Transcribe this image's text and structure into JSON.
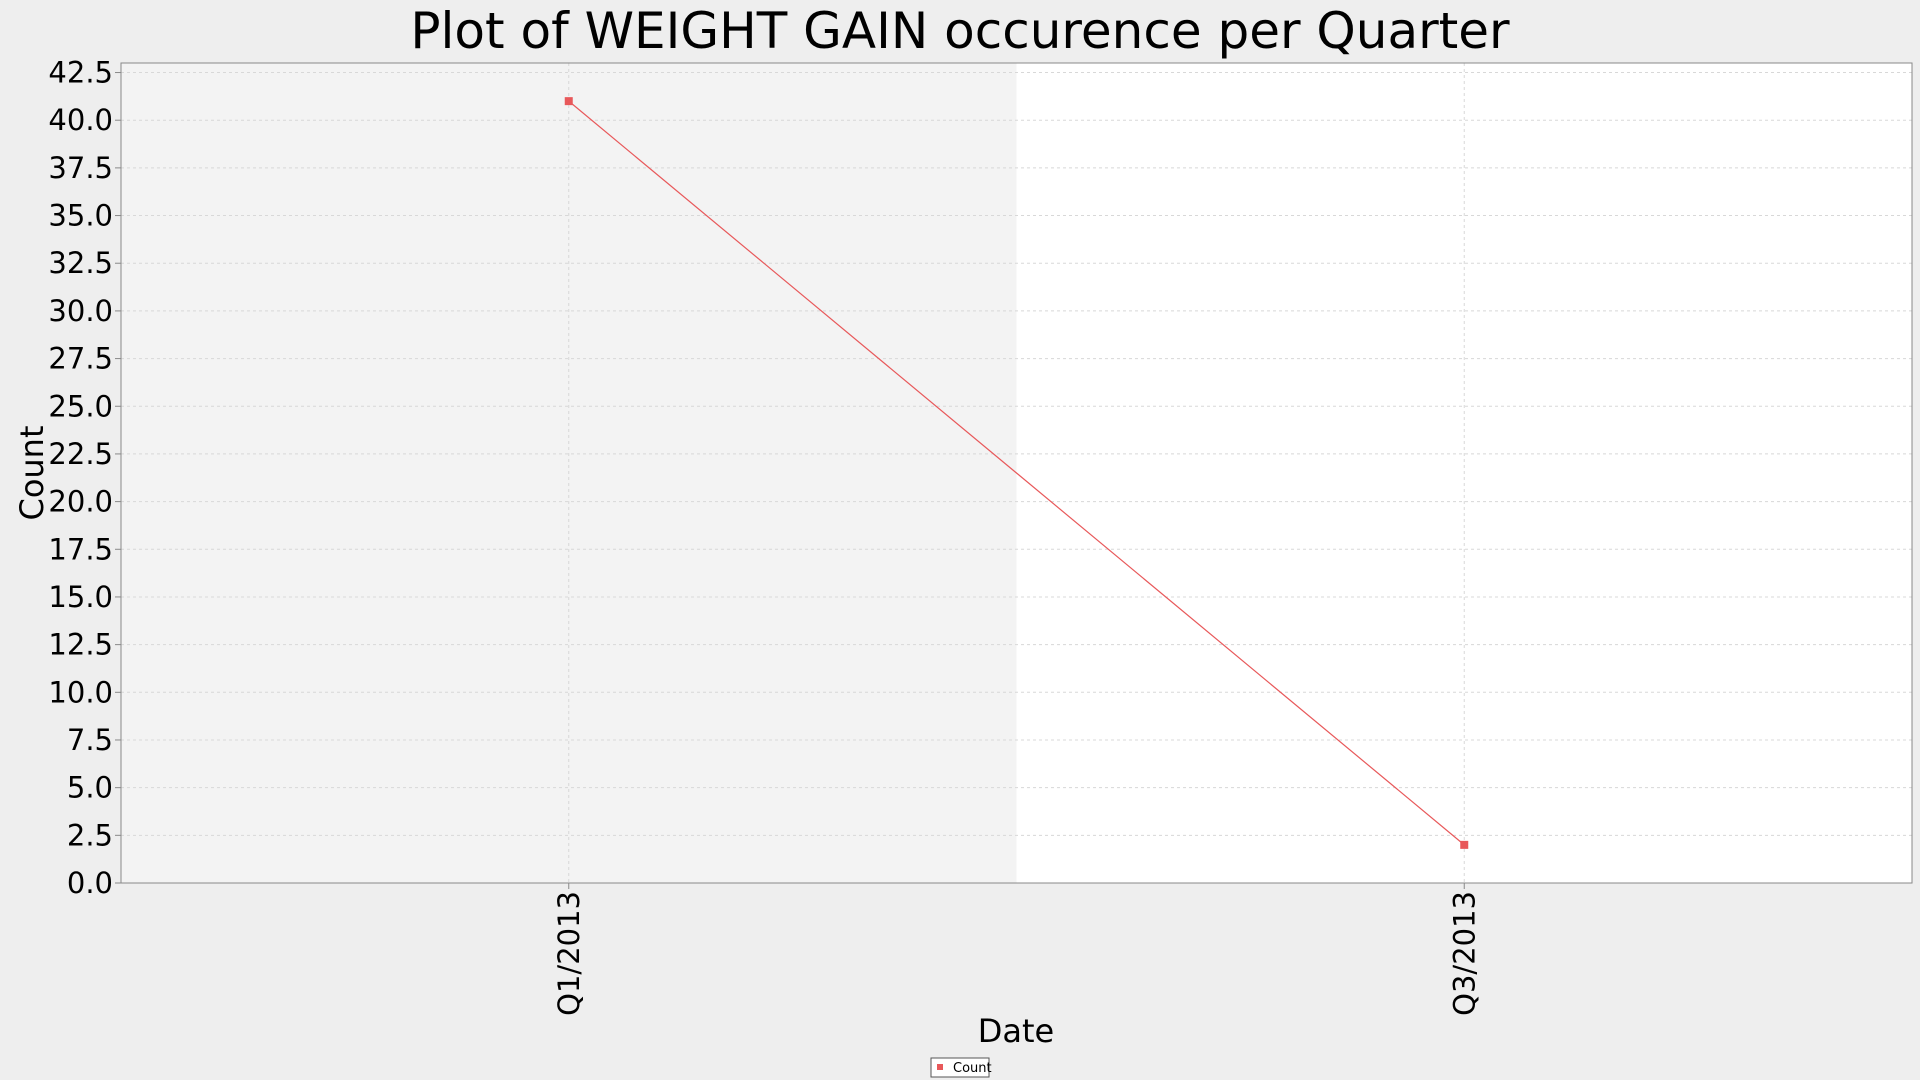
{
  "chart_data": {
    "type": "line",
    "title": "Plot of WEIGHT GAIN occurence per Quarter",
    "xlabel": "Date",
    "ylabel": "Count",
    "categories": [
      "Q1/2013",
      "Q3/2013"
    ],
    "series": [
      {
        "name": "Count",
        "values": [
          41,
          2
        ],
        "color": "#e8585a"
      }
    ],
    "ylim": [
      0,
      43
    ],
    "yticks": [
      "0.0",
      "2.5",
      "5.0",
      "7.5",
      "10.0",
      "12.5",
      "15.0",
      "17.5",
      "20.0",
      "22.5",
      "25.0",
      "27.5",
      "30.0",
      "32.5",
      "35.0",
      "37.5",
      "40.0",
      "42.5"
    ],
    "grid": true,
    "legend_position": "bottom-center",
    "colors": {
      "page_background": "#eeeeee",
      "plot_band_shaded": "#f3f3f3",
      "plot_background": "#ffffff",
      "gridline": "#d8d8d8",
      "axis": "#888888"
    }
  }
}
